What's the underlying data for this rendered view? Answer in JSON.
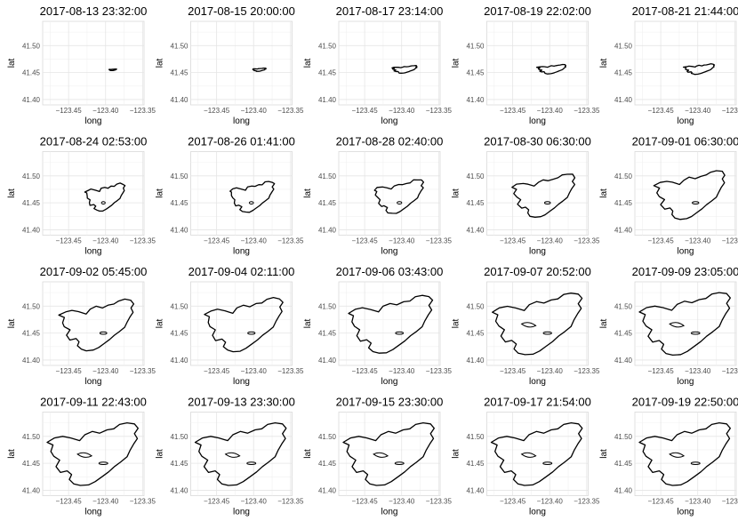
{
  "chart_data": {
    "type": "map",
    "layout": {
      "rows": 4,
      "cols": 5
    },
    "xlabel": "long",
    "ylabel": "lat",
    "xlim": [
      -123.485,
      -123.348
    ],
    "ylim": [
      41.39,
      41.545
    ],
    "x_ticks": [
      -123.45,
      -123.4,
      -123.35
    ],
    "x_tick_labels": [
      "−123.45",
      "−123.40",
      "−123.35"
    ],
    "y_ticks": [
      41.4,
      41.45,
      41.5
    ],
    "y_tick_labels": [
      "41.40",
      "41.45",
      "41.50"
    ],
    "grid": true,
    "panels": [
      {
        "title": "2017-08-13 23:32:00",
        "extent": 0.08
      },
      {
        "title": "2017-08-15 20:00:00",
        "extent": 0.14
      },
      {
        "title": "2017-08-17 23:14:00",
        "extent": 0.26
      },
      {
        "title": "2017-08-19 22:02:00",
        "extent": 0.3
      },
      {
        "title": "2017-08-21 21:44:00",
        "extent": 0.32
      },
      {
        "title": "2017-08-24 02:53:00",
        "extent": 0.42
      },
      {
        "title": "2017-08-26 01:41:00",
        "extent": 0.47
      },
      {
        "title": "2017-08-28 02:40:00",
        "extent": 0.52
      },
      {
        "title": "2017-08-30 06:30:00",
        "extent": 0.66
      },
      {
        "title": "2017-09-01 06:30:00",
        "extent": 0.74
      },
      {
        "title": "2017-09-02 05:45:00",
        "extent": 0.78
      },
      {
        "title": "2017-09-04 02:11:00",
        "extent": 0.82
      },
      {
        "title": "2017-09-06 03:43:00",
        "extent": 0.88
      },
      {
        "title": "2017-09-07 20:52:00",
        "extent": 0.94
      },
      {
        "title": "2017-09-09 23:05:00",
        "extent": 0.97
      },
      {
        "title": "2017-09-11 22:43:00",
        "extent": 1.0
      },
      {
        "title": "2017-09-13 23:30:00",
        "extent": 1.0
      },
      {
        "title": "2017-09-15 23:30:00",
        "extent": 1.0
      },
      {
        "title": "2017-09-17 21:54:00",
        "extent": 1.0
      },
      {
        "title": "2017-09-19 22:50:00",
        "extent": 1.0
      }
    ],
    "full_perimeter": [
      [
        -123.435,
        41.492
      ],
      [
        -123.428,
        41.503
      ],
      [
        -123.418,
        41.509
      ],
      [
        -123.408,
        41.506
      ],
      [
        -123.398,
        41.512
      ],
      [
        -123.389,
        41.514
      ],
      [
        -123.381,
        41.522
      ],
      [
        -123.371,
        41.525
      ],
      [
        -123.361,
        41.523
      ],
      [
        -123.356,
        41.515
      ],
      [
        -123.361,
        41.505
      ],
      [
        -123.357,
        41.496
      ],
      [
        -123.362,
        41.486
      ],
      [
        -123.367,
        41.474
      ],
      [
        -123.371,
        41.462
      ],
      [
        -123.38,
        41.452
      ],
      [
        -123.388,
        41.444
      ],
      [
        -123.396,
        41.434
      ],
      [
        -123.405,
        41.425
      ],
      [
        -123.414,
        41.416
      ],
      [
        -123.423,
        41.41
      ],
      [
        -123.434,
        41.409
      ],
      [
        -123.443,
        41.412
      ],
      [
        -123.449,
        41.42
      ],
      [
        -123.446,
        41.429
      ],
      [
        -123.452,
        41.436
      ],
      [
        -123.461,
        41.433
      ],
      [
        -123.467,
        41.444
      ],
      [
        -123.462,
        41.456
      ],
      [
        -123.47,
        41.463
      ],
      [
        -123.474,
        41.472
      ],
      [
        -123.471,
        41.484
      ],
      [
        -123.479,
        41.489
      ],
      [
        -123.469,
        41.497
      ],
      [
        -123.458,
        41.5
      ],
      [
        -123.447,
        41.497
      ]
    ],
    "center": [
      -123.388,
      41.451
    ],
    "spot_fire": [
      -123.415,
      41.458
    ]
  }
}
